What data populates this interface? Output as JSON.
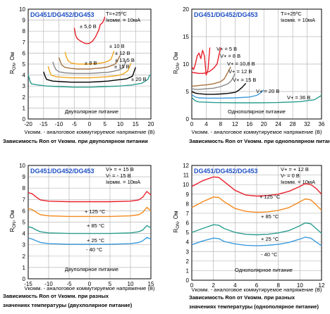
{
  "chart_data": [
    {
      "type": "line",
      "part_label": "DG451/DG452/DG453",
      "conditions": [
        "T=+25ºC",
        "Iкомм. = 10мA"
      ],
      "xlabel": "Vкомм. - аналоговое коммутируемое напряжение  (В)",
      "ylabel": "RON, Ом",
      "title": "Зависимость Ron от Vкомм. при двуполярном питании",
      "inner_label": "Двуполярное питание",
      "xlim": [
        -20,
        20
      ],
      "ylim": [
        0,
        10
      ],
      "xticks": [
        -20,
        -15,
        -10,
        -5,
        0,
        5,
        10,
        15,
        20
      ],
      "yticks": [
        0,
        1,
        2,
        3,
        4,
        5,
        6,
        7,
        8,
        9,
        10
      ],
      "grid": true,
      "series": [
        {
          "name": "± 5,0 В",
          "color": "#e8212b",
          "x": [
            -5,
            -4.5,
            -4,
            -3,
            -2,
            -1,
            0,
            1,
            2,
            3,
            3.5,
            4,
            4.5,
            5
          ],
          "y": [
            8.3,
            7.6,
            7.3,
            7.1,
            6.95,
            6.85,
            6.9,
            7.1,
            7.5,
            8.1,
            8.6,
            8.7,
            8.9,
            9.3
          ]
        },
        {
          "name": "± 8 В",
          "color": "#f2a61f",
          "x": [
            -8,
            -7.5,
            -7,
            -6,
            -4,
            -2,
            0,
            2,
            4,
            6,
            7,
            7.5,
            8
          ],
          "y": [
            6.1,
            5.6,
            5.3,
            5.1,
            5.0,
            5.0,
            5.0,
            5.05,
            5.1,
            5.25,
            5.45,
            5.8,
            6.2
          ]
        },
        {
          "name": "± 10 В",
          "color": "#a77340",
          "x": [
            -10,
            -9.5,
            -9,
            -8,
            -6,
            -4,
            -2,
            0,
            2,
            4,
            6,
            8,
            9,
            9.5,
            10
          ],
          "y": [
            5.6,
            5.2,
            4.9,
            4.7,
            4.6,
            4.55,
            4.55,
            4.55,
            4.6,
            4.65,
            4.75,
            4.95,
            5.2,
            5.55,
            5.8
          ]
        },
        {
          "name": "± 12 В",
          "color": "#888888",
          "x": [
            -12,
            -11.5,
            -11,
            -10,
            -8,
            -5,
            -2,
            0,
            3,
            6,
            8,
            10,
            11,
            11.5,
            12
          ],
          "y": [
            5.2,
            4.8,
            4.5,
            4.3,
            4.2,
            4.15,
            4.15,
            4.15,
            4.2,
            4.25,
            4.35,
            4.5,
            4.7,
            5.0,
            5.4
          ]
        },
        {
          "name": "± 13,5 В",
          "color": "#f2a61f",
          "x": [
            -13.5,
            -13,
            -12.5,
            -11,
            -9,
            -6,
            -3,
            0,
            3,
            6,
            9,
            11,
            12.5,
            13,
            13.5
          ],
          "y": [
            4.8,
            4.3,
            4.0,
            3.85,
            3.8,
            3.75,
            3.75,
            3.75,
            3.8,
            3.85,
            3.95,
            4.1,
            4.4,
            4.7,
            5.1
          ]
        },
        {
          "name": "± 15 В",
          "color": "#000000",
          "x": [
            -15,
            -14.5,
            -14,
            -12,
            -9,
            -6,
            -3,
            0,
            3,
            6,
            9,
            12,
            14,
            14.5,
            15
          ],
          "y": [
            4.3,
            3.9,
            3.6,
            3.45,
            3.4,
            3.35,
            3.35,
            3.35,
            3.4,
            3.45,
            3.55,
            3.65,
            3.9,
            4.3,
            4.7
          ]
        },
        {
          "name": "± 20 В",
          "color": "#2a9d8f",
          "x": [
            -20,
            -19.5,
            -19,
            -17,
            -14,
            -10,
            -5,
            0,
            5,
            10,
            14,
            17,
            19,
            19.5,
            20
          ],
          "y": [
            4.05,
            3.5,
            3.2,
            3.1,
            3.0,
            2.95,
            2.9,
            2.9,
            2.95,
            3.0,
            3.1,
            3.25,
            3.6,
            3.95,
            4.0
          ]
        }
      ]
    },
    {
      "type": "line",
      "part_label": "DG451/DG452/DG453",
      "conditions": [
        "T=+25ºC",
        "Iкомм. = 10мA"
      ],
      "xlabel": "Vкомм. - аналоговое коммутируемое напряжение  (В)",
      "ylabel": "RON, Ом",
      "title": "Зависимость Ron от Vкомм. при однополярном питании",
      "inner_label": "Однополярное питание",
      "xlim": [
        0,
        36
      ],
      "ylim": [
        0,
        20
      ],
      "xticks": [
        0,
        4,
        8,
        12,
        16,
        20,
        24,
        28,
        32,
        36
      ],
      "yticks": [
        0,
        5,
        10,
        15,
        20
      ],
      "grid": true,
      "series": [
        {
          "name": "V+ = 5 В",
          "color": "#e8212b",
          "x": [
            0,
            0.5,
            1,
            1.5,
            2,
            2.5,
            3,
            3.5,
            4,
            4.5,
            5
          ],
          "y": [
            9.5,
            9.0,
            10.0,
            11.5,
            12.0,
            11.0,
            12.5,
            11.5,
            8.0,
            9.0,
            13.0
          ]
        },
        {
          "name": "V+ = 8 В",
          "color": "#e8212b",
          "x": [
            0,
            1,
            2,
            3,
            4,
            5,
            6,
            7,
            7.5,
            8
          ],
          "y": [
            8.5,
            8.4,
            8.3,
            8.3,
            8.4,
            8.7,
            9.2,
            10.0,
            11.5,
            13.0
          ]
        },
        {
          "name": "V+ = 10,8 В",
          "color": "#a77340",
          "x": [
            0,
            1,
            2,
            4,
            6,
            8,
            9,
            10,
            10.8
          ],
          "y": [
            6.0,
            6.0,
            6.1,
            6.2,
            6.4,
            6.8,
            7.3,
            8.5,
            9.5
          ]
        },
        {
          "name": "V+ = 12 В",
          "color": "#888888",
          "x": [
            0,
            1,
            2,
            4,
            6,
            8,
            10,
            11,
            11.5,
            12
          ],
          "y": [
            5.5,
            5.4,
            5.4,
            5.5,
            5.6,
            5.9,
            6.4,
            7.0,
            7.6,
            8.3
          ]
        },
        {
          "name": "V+ = 15 В",
          "color": "#000000",
          "x": [
            0,
            1,
            2,
            4,
            6,
            8,
            10,
            12,
            13,
            14,
            15
          ],
          "y": [
            5.0,
            4.7,
            4.6,
            4.5,
            4.5,
            4.55,
            4.65,
            4.85,
            5.2,
            5.8,
            6.5
          ]
        },
        {
          "name": "V+ = 20 В",
          "color": "#3a9bdc",
          "x": [
            0,
            1,
            2,
            4,
            8,
            12,
            16,
            18,
            19,
            20
          ],
          "y": [
            4.4,
            4.0,
            3.85,
            3.8,
            3.8,
            3.85,
            4.0,
            4.3,
            4.7,
            5.3
          ]
        },
        {
          "name": "V+ = 36 В",
          "color": "#2a9d8f",
          "x": [
            0,
            1,
            2,
            6,
            12,
            18,
            24,
            30,
            34,
            35,
            36
          ],
          "y": [
            3.9,
            3.3,
            3.1,
            3.0,
            2.95,
            2.95,
            3.0,
            3.15,
            3.5,
            3.9,
            4.3
          ]
        }
      ]
    },
    {
      "type": "line",
      "part_label": "DG451/DG452/DG453",
      "conditions": [
        "V+ = + 15 В",
        "V- = - 15 В",
        "Iкомм. = 10мA"
      ],
      "xlabel": "Vкомм. - аналоговое коммутируемое напряжение  (В)",
      "ylabel": "RON, Ом",
      "title": "Зависимость Ron от Vкомм. при разных значениях температуры (двухполярное питание)",
      "inner_label": "Двуполярное питание",
      "xlim": [
        -15,
        15
      ],
      "ylim": [
        0,
        10
      ],
      "xticks": [
        -15,
        -10,
        -5,
        0,
        5,
        10,
        15
      ],
      "yticks": [
        0,
        1,
        2,
        3,
        4,
        5,
        6,
        7,
        8,
        9,
        10
      ],
      "grid": true,
      "series": [
        {
          "name": "+ 125 °C",
          "color": "#e8212b",
          "x": [
            -15,
            -14,
            -13,
            -12,
            -10,
            -5,
            0,
            5,
            10,
            12,
            13,
            14,
            15
          ],
          "y": [
            7.6,
            7.5,
            7.2,
            6.95,
            6.85,
            6.8,
            6.8,
            6.8,
            6.85,
            6.95,
            7.2,
            7.7,
            7.4
          ]
        },
        {
          "name": "+ 85 °C",
          "color": "#f28a1f",
          "x": [
            -15,
            -14,
            -13,
            -12,
            -10,
            -5,
            0,
            5,
            10,
            12,
            13,
            14,
            15
          ],
          "y": [
            6.2,
            6.1,
            5.85,
            5.65,
            5.55,
            5.5,
            5.5,
            5.5,
            5.55,
            5.65,
            5.85,
            6.3,
            6.0
          ]
        },
        {
          "name": "+ 25 °C",
          "color": "#2a9d8f",
          "x": [
            -15,
            -14,
            -13,
            -12,
            -10,
            -5,
            0,
            5,
            10,
            12,
            13,
            14,
            15
          ],
          "y": [
            4.6,
            4.5,
            4.3,
            4.15,
            4.05,
            4.0,
            4.0,
            4.0,
            4.05,
            4.15,
            4.3,
            4.7,
            4.5
          ]
        },
        {
          "name": "- 40 °C",
          "color": "#3a9bdc",
          "x": [
            -15,
            -14,
            -13,
            -12,
            -10,
            -5,
            0,
            5,
            10,
            12,
            13,
            14,
            15
          ],
          "y": [
            3.6,
            3.5,
            3.35,
            3.2,
            3.1,
            3.05,
            3.05,
            3.05,
            3.1,
            3.2,
            3.35,
            3.65,
            3.5
          ]
        }
      ]
    },
    {
      "type": "line",
      "part_label": "DG451/DG452/DG453",
      "conditions": [
        "V+ = + 12 В",
        "V- = 0 В",
        "Iкомм. = 10мA"
      ],
      "xlabel": "Vкомм. - аналоговое коммутируемое напряжение  (В)",
      "ylabel": "RON, Ом",
      "title": "Зависимость Ron от Vкомм. при разных значениях температуры (однополярное питание)",
      "inner_label": "Однополярное питание",
      "xlim": [
        0,
        12
      ],
      "ylim": [
        0,
        12
      ],
      "xticks": [
        0,
        2,
        4,
        6,
        8,
        10,
        12
      ],
      "yticks": [
        0,
        1,
        2,
        3,
        4,
        5,
        6,
        7,
        8,
        9,
        10,
        11,
        12
      ],
      "grid": true,
      "series": [
        {
          "name": "+ 125 °C",
          "color": "#e8212b",
          "x": [
            0,
            1,
            2,
            2.5,
            3,
            4,
            5,
            6,
            7,
            8,
            9,
            10,
            10.5,
            11,
            11.5,
            12
          ],
          "y": [
            9.8,
            10.4,
            10.8,
            10.75,
            10.3,
            9.4,
            8.9,
            8.8,
            8.85,
            9.0,
            9.3,
            9.8,
            10.1,
            10.0,
            9.6,
            9.0
          ]
        },
        {
          "name": "+ 85 °C",
          "color": "#f28a1f",
          "x": [
            0,
            1,
            2,
            2.5,
            3,
            4,
            5,
            6,
            7,
            8,
            9,
            10,
            10.5,
            11,
            11.5,
            12
          ],
          "y": [
            7.6,
            8.2,
            8.7,
            8.65,
            8.2,
            7.5,
            7.2,
            7.1,
            7.15,
            7.3,
            7.6,
            8.2,
            8.5,
            8.4,
            7.9,
            7.3
          ]
        },
        {
          "name": "+ 25 °C",
          "color": "#2a9d8f",
          "x": [
            0,
            1,
            2,
            2.5,
            3,
            4,
            5,
            6,
            7,
            8,
            9,
            10,
            10.5,
            11,
            11.5,
            12
          ],
          "y": [
            5.0,
            5.4,
            5.8,
            5.75,
            5.4,
            5.0,
            4.8,
            4.75,
            4.8,
            4.95,
            5.2,
            5.7,
            6.0,
            5.9,
            5.4,
            4.9
          ]
        },
        {
          "name": "- 40 °C",
          "color": "#3a9bdc",
          "x": [
            0,
            1,
            2,
            2.5,
            3,
            4,
            5,
            6,
            7,
            8,
            9,
            10,
            10.5,
            11,
            11.5,
            12
          ],
          "y": [
            3.7,
            4.1,
            4.4,
            4.35,
            4.05,
            3.8,
            3.65,
            3.6,
            3.65,
            3.75,
            3.95,
            4.3,
            4.5,
            4.4,
            4.0,
            3.6
          ]
        }
      ]
    }
  ]
}
